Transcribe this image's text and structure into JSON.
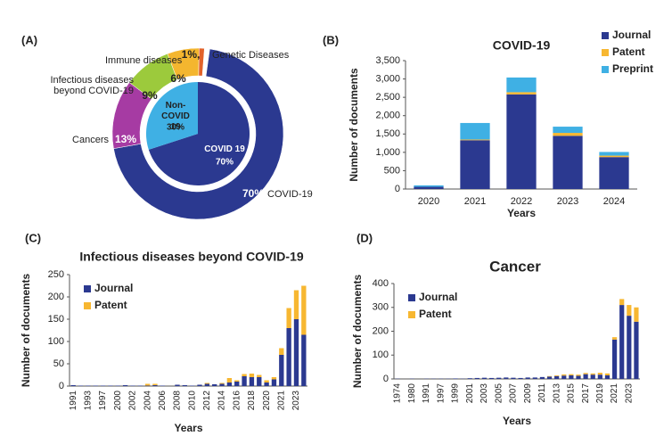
{
  "chart_data": [
    {
      "type": "donut",
      "panel_label": "(A)",
      "categories": [
        "COVID-19",
        "Cancers",
        "Infectious diseases beyond COVID-19",
        "Immune diseases",
        "Genetic Diseases"
      ],
      "values": [
        70,
        13,
        9,
        6,
        1
      ],
      "value_labels": [
        "70%",
        "13%",
        "9%",
        "6%",
        "1%,"
      ],
      "colors": [
        "#2b3990",
        "#a63ba3",
        "#9cca3c",
        "#f4b62f",
        "#e2622a"
      ],
      "inner": {
        "categories": [
          "COVID 19",
          "Non-COVID 19"
        ],
        "values": [
          70,
          30
        ],
        "value_labels": [
          "70%",
          "30%"
        ],
        "colors": [
          "#2b3990",
          "#3fb0e4"
        ]
      }
    },
    {
      "type": "bar",
      "panel_label": "(B)",
      "title": "COVID-19",
      "xlabel": "Years",
      "ylabel": "Number of documents",
      "categories": [
        "2020",
        "2021",
        "2022",
        "2023",
        "2024"
      ],
      "series": [
        {
          "name": "Journal",
          "color": "#2b3990",
          "values": [
            60,
            1330,
            2580,
            1450,
            870
          ]
        },
        {
          "name": "Patent",
          "color": "#f7b731",
          "values": [
            0,
            20,
            60,
            80,
            40
          ]
        },
        {
          "name": "Preprint",
          "color": "#3fb0e4",
          "values": [
            40,
            450,
            400,
            170,
            100
          ]
        }
      ],
      "ylim": [
        0,
        3500
      ],
      "yticks": [
        0,
        500,
        {
          "value": 1000,
          "label": "1,000"
        },
        {
          "value": 1500,
          "label": "1,500"
        },
        {
          "value": 2000,
          "label": "2,000"
        },
        {
          "value": 2500,
          "label": "2,500"
        },
        {
          "value": 3000,
          "label": "3,000"
        },
        {
          "value": 3500,
          "label": "3,500"
        }
      ],
      "stacked": true,
      "grid": false,
      "legend": "upper right"
    },
    {
      "type": "bar",
      "panel_label": "(C)",
      "title": "Infectious diseases beyond COVID-19",
      "xlabel": "Years",
      "ylabel": "Number of documents",
      "categories": [
        "1991",
        null,
        "1993",
        null,
        "1997",
        null,
        "2000",
        null,
        "2002",
        null,
        "2004",
        null,
        "2006",
        null,
        "2008",
        null,
        "2010",
        null,
        "2012",
        null,
        "2014",
        null,
        "2016",
        null,
        "2018",
        null,
        "2020",
        null,
        "2021",
        null,
        "2023",
        null
      ],
      "series": [
        {
          "name": "Journal",
          "color": "#2b3990",
          "values": [
            2,
            1,
            1,
            1,
            1,
            1,
            1,
            2,
            1,
            1,
            1,
            2,
            1,
            0,
            3,
            2,
            1,
            3,
            5,
            4,
            5,
            8,
            10,
            22,
            20,
            20,
            8,
            15,
            70,
            130,
            150,
            115
          ]
        },
        {
          "name": "Patent",
          "color": "#f7b731",
          "values": [
            0,
            0,
            0,
            0,
            0,
            0,
            0,
            0,
            0,
            0,
            4,
            3,
            0,
            0,
            0,
            0,
            0,
            0,
            2,
            0,
            2,
            10,
            3,
            5,
            8,
            5,
            5,
            5,
            15,
            45,
            65,
            110
          ]
        }
      ],
      "ylim": [
        0,
        250
      ],
      "yticks": [
        0,
        50,
        100,
        150,
        200,
        250
      ],
      "stacked": true,
      "grid": false,
      "legend": "upper left"
    },
    {
      "type": "bar",
      "panel_label": "(D)",
      "title": "Cancer",
      "xlabel": "Years",
      "ylabel": "Number of documents",
      "categories": [
        "1974",
        null,
        "1980",
        null,
        "1991",
        null,
        "1997",
        null,
        "1999",
        null,
        "2001",
        null,
        "2003",
        null,
        "2005",
        null,
        "2007",
        null,
        "2009",
        null,
        "2011",
        null,
        "2013",
        null,
        "2015",
        null,
        "2017",
        null,
        "2019",
        null,
        "2021",
        null,
        "2023",
        null
      ],
      "series": [
        {
          "name": "Journal",
          "color": "#2b3990",
          "values": [
            1,
            0,
            1,
            0,
            1,
            1,
            1,
            1,
            2,
            1,
            3,
            4,
            5,
            4,
            5,
            6,
            5,
            4,
            6,
            6,
            8,
            10,
            12,
            14,
            15,
            13,
            20,
            18,
            18,
            15,
            165,
            310,
            265,
            240
          ]
        },
        {
          "name": "Patent",
          "color": "#f7b731",
          "values": [
            0,
            0,
            0,
            0,
            0,
            0,
            0,
            0,
            0,
            0,
            0,
            0,
            0,
            0,
            0,
            0,
            0,
            0,
            0,
            0,
            0,
            2,
            3,
            5,
            5,
            5,
            5,
            5,
            8,
            8,
            10,
            25,
            45,
            60
          ]
        }
      ],
      "ylim": [
        0,
        400
      ],
      "yticks": [
        0,
        100,
        200,
        300,
        400
      ],
      "stacked": true,
      "grid": false,
      "legend": "upper left"
    }
  ]
}
